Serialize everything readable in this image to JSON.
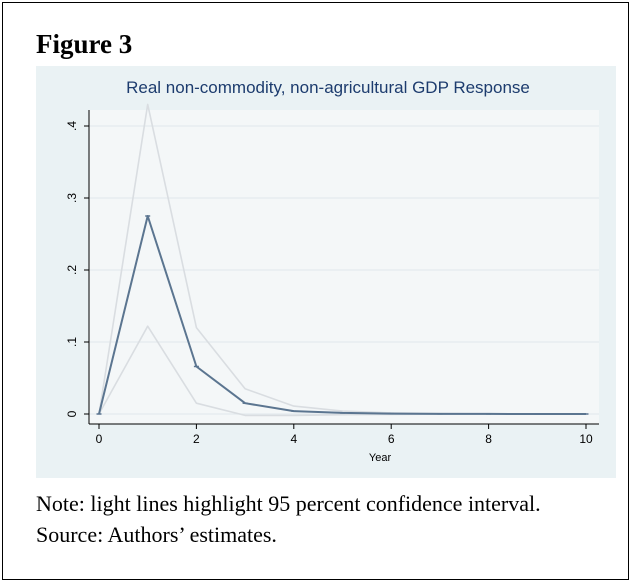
{
  "figure": {
    "label": "Figure 3",
    "note": "Note: light lines highlight 95 percent confidence interval.",
    "source": "Source: Authors’ estimates."
  },
  "chart_data": {
    "type": "line",
    "title": "Real non-commodity, non-agricultural GDP Response",
    "xlabel": "Year",
    "ylabel": "",
    "xlim": [
      0,
      10
    ],
    "ylim": [
      0,
      0.4
    ],
    "xticks": [
      0,
      2,
      4,
      6,
      8,
      10
    ],
    "yticks": [
      0,
      0.1,
      0.2,
      0.3,
      0.4
    ],
    "ytick_labels": [
      "0",
      ".1",
      ".2",
      ".3",
      ".4"
    ],
    "grid": true,
    "x": [
      0,
      1,
      2,
      3,
      4,
      5,
      6,
      7,
      8,
      9,
      10
    ],
    "series": [
      {
        "values": [
          0,
          0.275,
          0.066,
          0.015,
          0.004,
          0.0015,
          0.0005,
          0.0002,
          0.0001,
          0.0,
          0.0
        ],
        "color": "#5b7590"
      },
      {
        "values": [
          0,
          0.43,
          0.12,
          0.035,
          0.011,
          0.004,
          0.0015,
          0.0005,
          0.0002,
          0.0001,
          0.0
        ],
        "color": "#d9dde1"
      },
      {
        "values": [
          0,
          0.122,
          0.015,
          -0.002,
          -0.002,
          -0.001,
          -0.0005,
          -0.0002,
          -0.0001,
          0.0,
          0.0
        ],
        "color": "#d9dde1"
      }
    ],
    "colors": {
      "plot_background": "#eaf2f4",
      "outer_background": "#eaf2f4",
      "title": "#1d3c6e",
      "grid": "#ffffff",
      "axis": "#000000"
    }
  }
}
